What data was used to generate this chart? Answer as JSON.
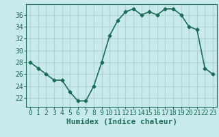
{
  "x": [
    0,
    1,
    2,
    3,
    4,
    5,
    6,
    7,
    8,
    9,
    10,
    11,
    12,
    13,
    14,
    15,
    16,
    17,
    18,
    19,
    20,
    21,
    22,
    23
  ],
  "y": [
    28,
    27,
    26,
    25,
    25,
    23,
    21.5,
    21.5,
    24,
    28,
    32.5,
    35,
    36.5,
    37,
    36,
    36.5,
    36,
    37,
    37,
    36,
    34,
    33.5,
    27,
    26
  ],
  "line_color": "#1a6b5a",
  "marker": "D",
  "marker_size": 2.5,
  "bg_color": "#c8eaea",
  "grid_color": "#b0d4d4",
  "xlabel": "Humidex (Indice chaleur)",
  "xlabel_fontsize": 8,
  "xlim": [
    -0.5,
    23.5
  ],
  "ylim": [
    20.5,
    37.8
  ],
  "yticks": [
    22,
    24,
    26,
    28,
    30,
    32,
    34,
    36
  ],
  "xticks": [
    0,
    1,
    2,
    3,
    4,
    5,
    6,
    7,
    8,
    9,
    10,
    11,
    12,
    13,
    14,
    15,
    16,
    17,
    18,
    19,
    20,
    21,
    22,
    23
  ],
  "tick_fontsize": 7,
  "line_width": 1.2
}
